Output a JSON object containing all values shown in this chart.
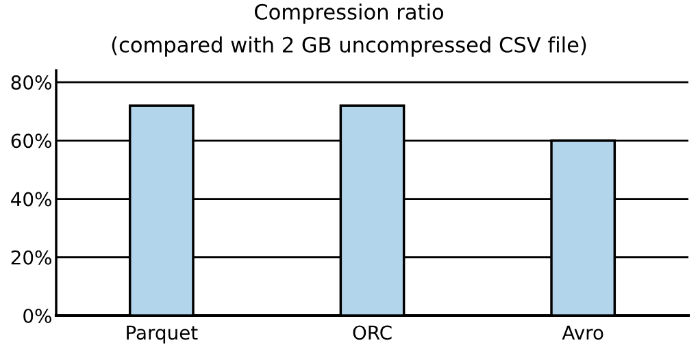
{
  "chart_data": {
    "type": "bar",
    "title": "Compression ratio",
    "subtitle": "(compared with 2 GB uncompressed CSV file)",
    "categories": [
      "Parquet",
      "ORC",
      "Avro"
    ],
    "values": [
      72,
      72,
      60
    ],
    "color": "#b3d5ec",
    "ylim": [
      0,
      84
    ],
    "yticks": [
      {
        "value": 0,
        "label": "0%"
      },
      {
        "value": 20,
        "label": "20%"
      },
      {
        "value": 40,
        "label": "40%"
      },
      {
        "value": 60,
        "label": "60%"
      },
      {
        "value": 80,
        "label": "80%"
      }
    ],
    "grid": "y"
  }
}
